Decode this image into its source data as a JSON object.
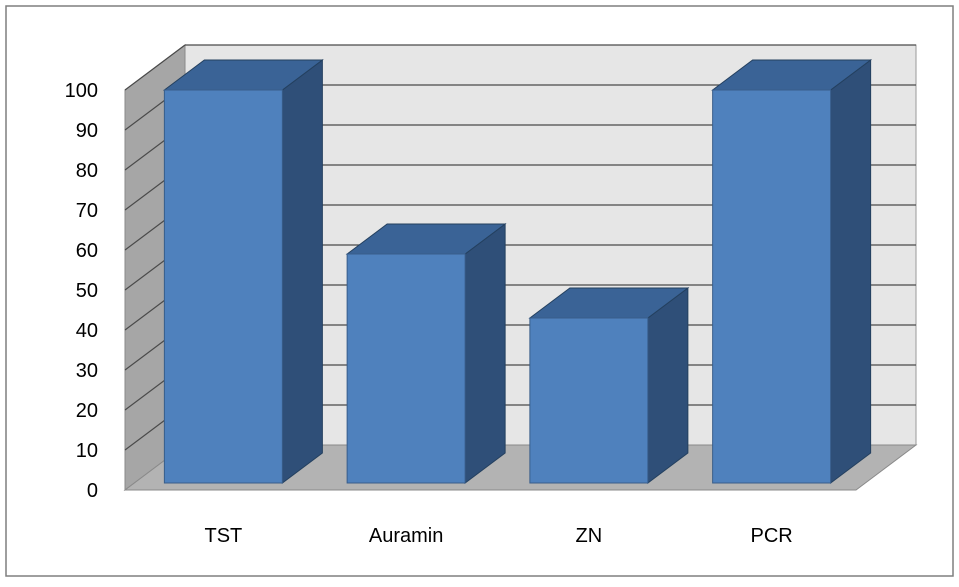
{
  "chart_data": {
    "type": "bar",
    "title": "",
    "xlabel": "",
    "ylabel": "",
    "categories": [
      "TST",
      "Auramin",
      "ZN",
      "PCR"
    ],
    "values": [
      100,
      59,
      43,
      100
    ],
    "ylim": [
      0,
      100
    ],
    "yticks": [
      0,
      10,
      20,
      30,
      40,
      50,
      60,
      70,
      80,
      90,
      100
    ],
    "grid": true,
    "legend": "none",
    "style": "3d-column",
    "colors": {
      "bar_front": "#4f81bd",
      "bar_side": "#2f4f78",
      "bar_top": "#3a6396",
      "wall": "#e6e6e6",
      "side_wall": "#a6a6a6",
      "floor": "#b3b3b3",
      "gridline": "#4a4a4a",
      "frame_border": "#7f7f7f"
    }
  }
}
